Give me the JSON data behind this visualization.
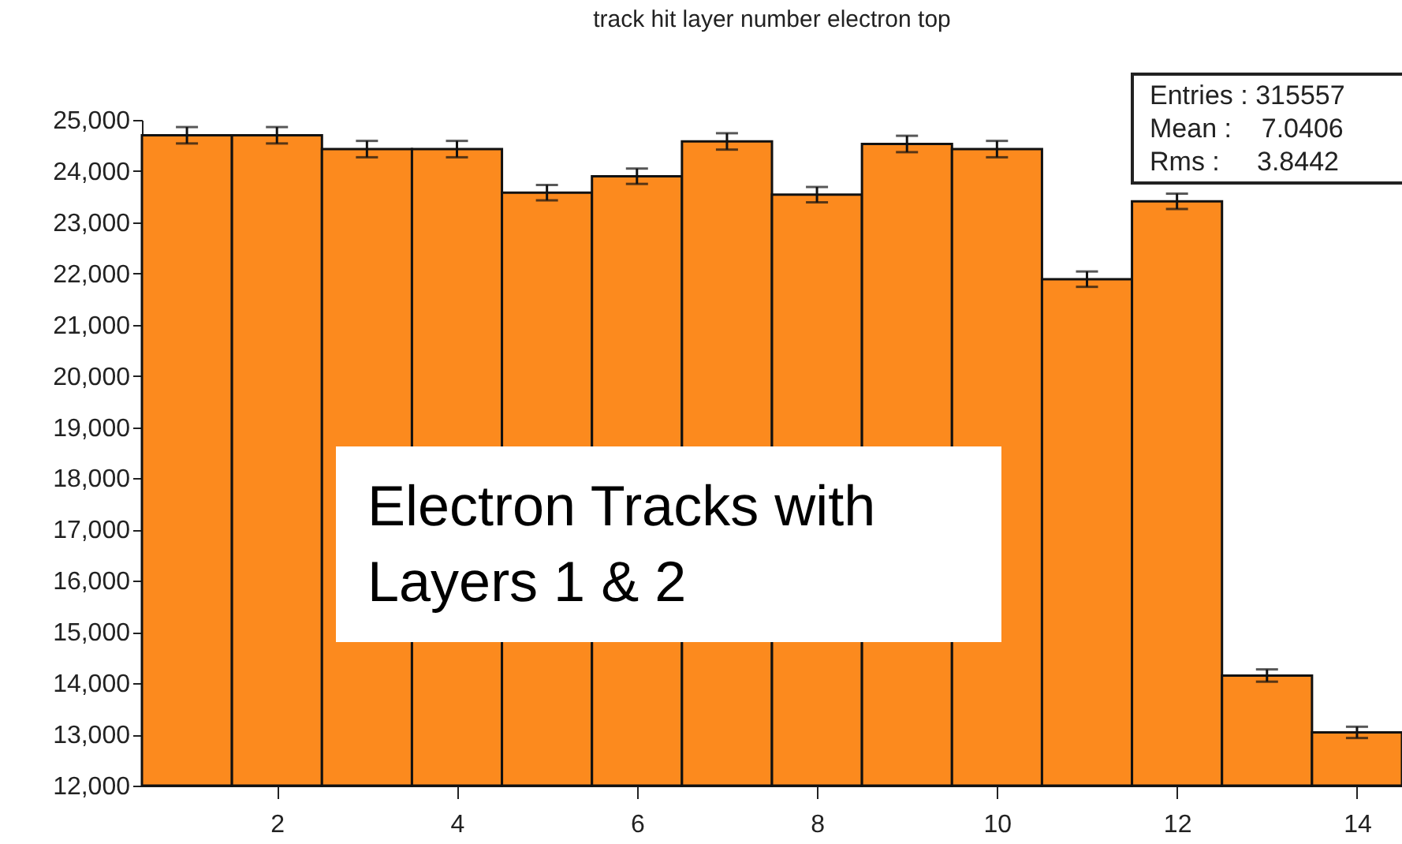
{
  "chart_data": {
    "type": "histogram",
    "title": "track hit layer number  electron top",
    "bins": [
      0.5,
      1.5,
      2.5,
      3.5,
      4.5,
      5.5,
      6.5,
      7.5,
      8.5,
      9.5,
      10.5,
      11.5,
      12.5,
      13.5,
      14.5
    ],
    "values": [
      24700,
      24700,
      24430,
      24430,
      23580,
      23900,
      24580,
      23540,
      24530,
      24430,
      21890,
      23410,
      14150,
      13040
    ],
    "errors": [
      160,
      160,
      160,
      160,
      150,
      150,
      160,
      150,
      160,
      160,
      150,
      150,
      120,
      110
    ],
    "color": "#fc8a1e",
    "xlim": [
      0.5,
      14.5
    ],
    "xticks": [
      2,
      4,
      6,
      8,
      10,
      12,
      14
    ],
    "ylim": [
      12000,
      25000
    ],
    "yticks": [
      {
        "value": 12000,
        "label": "12,000"
      },
      {
        "value": 13000,
        "label": "13,000"
      },
      {
        "value": 14000,
        "label": "14,000"
      },
      {
        "value": 15000,
        "label": "15,000"
      },
      {
        "value": 16000,
        "label": "16,000"
      },
      {
        "value": 17000,
        "label": "17,000"
      },
      {
        "value": 18000,
        "label": "18,000"
      },
      {
        "value": 19000,
        "label": "19,000"
      },
      {
        "value": 20000,
        "label": "20,000"
      },
      {
        "value": 21000,
        "label": "21,000"
      },
      {
        "value": 22000,
        "label": "22,000"
      },
      {
        "value": 23000,
        "label": "23,000"
      },
      {
        "value": 24000,
        "label": "24,000"
      },
      {
        "value": 25000,
        "label": "25,000"
      }
    ],
    "grid": false,
    "annotations": [
      "Entries : 315557",
      "Mean :    7.0406",
      "Rms :     3.8442",
      "Electron Tracks with Layers 1 & 2"
    ]
  }
}
